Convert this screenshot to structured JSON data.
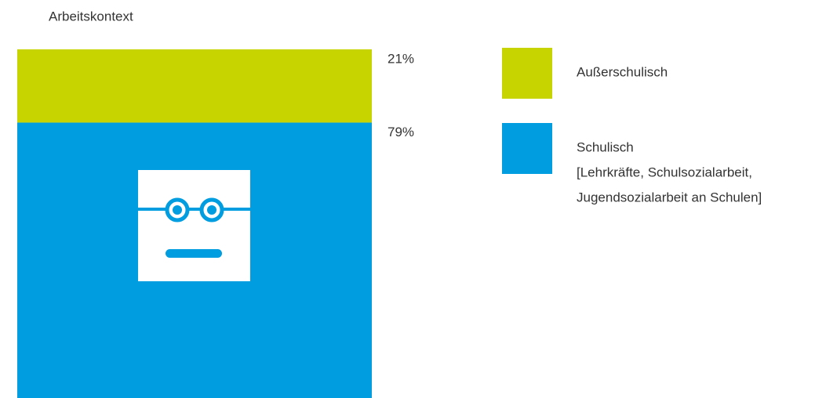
{
  "chart_data": {
    "type": "bar",
    "title": "Arbeitskontext",
    "ylim": [
      0,
      100
    ],
    "series": [
      {
        "name": "Außerschulisch",
        "color": "#c8d400",
        "values": [
          21
        ],
        "value_labels": [
          "21%"
        ]
      },
      {
        "name": "Schulisch",
        "description": [
          "[Lehrkräfte, Schulsozialarbeit,",
          "Jugendsozialarbeit an Schulen]"
        ],
        "color": "#009de0",
        "values": [
          79
        ],
        "value_labels": [
          "79%"
        ]
      }
    ]
  }
}
